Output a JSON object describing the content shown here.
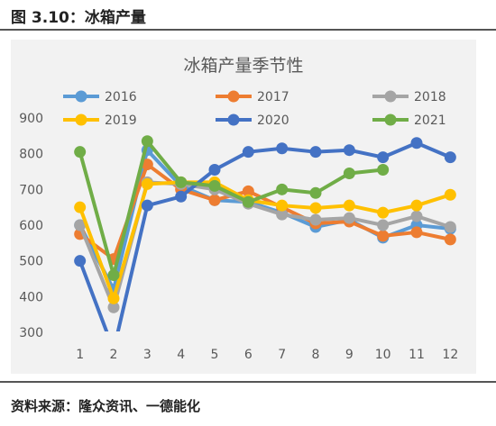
{
  "figure": {
    "title": "图 3.10：冰箱产量",
    "source": "资料来源：隆众资讯、一德能化"
  },
  "chart_data": {
    "type": "line",
    "title": "冰箱产量季节性",
    "categories": [
      "1",
      "2",
      "3",
      "4",
      "5",
      "6",
      "7",
      "8",
      "9",
      "10",
      "11",
      "12"
    ],
    "ylim": [
      300,
      900
    ],
    "yticks": [
      300,
      400,
      500,
      600,
      700,
      800,
      900
    ],
    "grid": false,
    "legend_position": "top",
    "series": [
      {
        "name": "2016",
        "color": "#5b9bd5",
        "values": [
          600,
          420,
          810,
          710,
          670,
          665,
          635,
          595,
          615,
          565,
          600,
          590
        ]
      },
      {
        "name": "2017",
        "color": "#ed7d31",
        "values": [
          575,
          505,
          770,
          700,
          670,
          695,
          650,
          605,
          610,
          570,
          580,
          560
        ]
      },
      {
        "name": "2018",
        "color": "#a5a5a5",
        "values": [
          600,
          370,
          720,
          715,
          700,
          660,
          630,
          615,
          620,
          600,
          625,
          595
        ]
      },
      {
        "name": "2019",
        "color": "#ffc000",
        "values": [
          650,
          395,
          715,
          720,
          720,
          670,
          655,
          648,
          655,
          635,
          655,
          685
        ]
      },
      {
        "name": "2020",
        "color": "#4472c4",
        "values": [
          500,
          250,
          655,
          680,
          755,
          805,
          815,
          805,
          810,
          790,
          830,
          790
        ]
      },
      {
        "name": "2021",
        "color": "#70ad47",
        "values": [
          805,
          460,
          835,
          720,
          710,
          665,
          700,
          690,
          745,
          755,
          null,
          null
        ]
      }
    ]
  }
}
